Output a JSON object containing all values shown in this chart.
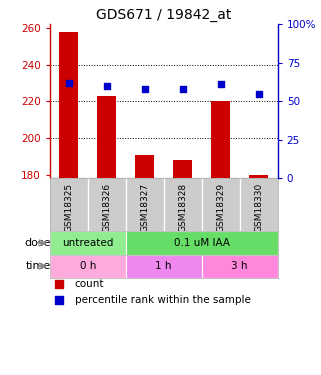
{
  "title": "GDS671 / 19842_at",
  "samples": [
    "GSM18325",
    "GSM18326",
    "GSM18327",
    "GSM18328",
    "GSM18329",
    "GSM18330"
  ],
  "bar_values": [
    258,
    223,
    191,
    188,
    220,
    180
  ],
  "dot_values": [
    62,
    60,
    58,
    58,
    61,
    55
  ],
  "bar_color": "#cc0000",
  "dot_color": "#0000cc",
  "ylim_left": [
    178,
    262
  ],
  "ylim_right": [
    0,
    100
  ],
  "yticks_left": [
    180,
    200,
    220,
    240,
    260
  ],
  "yticks_right": [
    0,
    25,
    50,
    75,
    100
  ],
  "ytick_right_labels": [
    "0",
    "25",
    "50",
    "75",
    "100%"
  ],
  "dose_labels": [
    {
      "text": "untreated",
      "span": [
        0,
        2
      ],
      "color": "#90ee90"
    },
    {
      "text": "0.1 uM IAA",
      "span": [
        2,
        6
      ],
      "color": "#66dd66"
    }
  ],
  "time_labels": [
    {
      "text": "0 h",
      "span": [
        0,
        2
      ],
      "color": "#ffaadd"
    },
    {
      "text": "1 h",
      "span": [
        2,
        4
      ],
      "color": "#ee88ee"
    },
    {
      "text": "3 h",
      "span": [
        4,
        6
      ],
      "color": "#ff88dd"
    }
  ],
  "dose_arrow_label": "dose",
  "time_arrow_label": "time",
  "legend_count_label": "count",
  "legend_percentile_label": "percentile rank within the sample",
  "bar_width": 0.5,
  "plot_bg": "#ffffff",
  "title_fontsize": 10,
  "tick_fontsize": 7.5,
  "label_fontsize": 8,
  "sample_label_fontsize": 6.5
}
